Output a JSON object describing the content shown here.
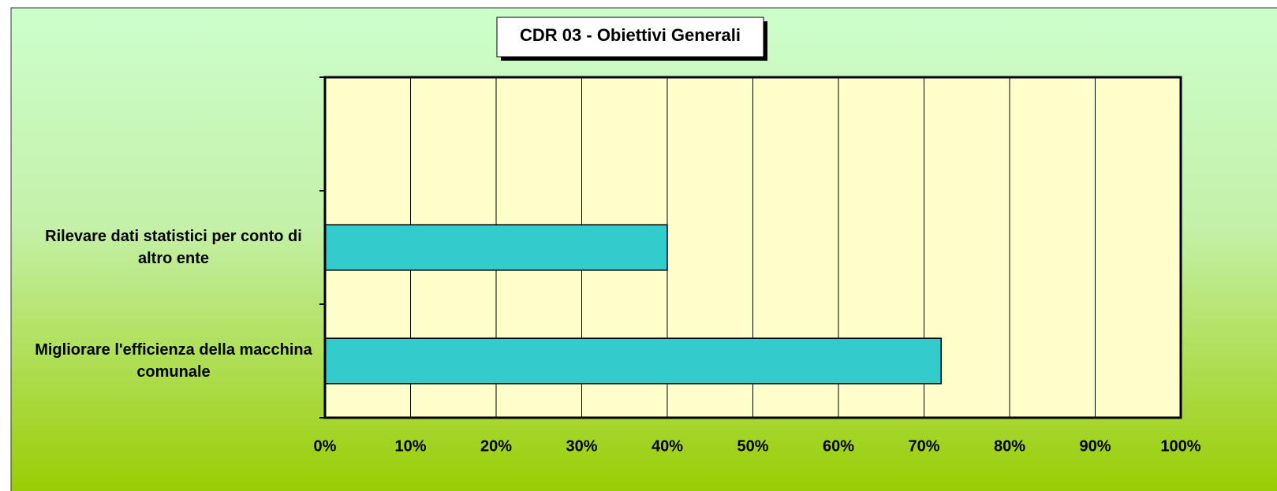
{
  "chart_data": {
    "type": "bar",
    "orientation": "horizontal",
    "title": "CDR 03 - Obiettivi Generali",
    "categories": [
      null,
      "Rilevare dati statistici per conto di altro ente",
      "Migliorare l'efficienza della macchina comunale"
    ],
    "values": [
      null,
      40,
      72
    ],
    "color": "#33cccc",
    "xlim": [
      0,
      100
    ],
    "xticks": [
      {
        "value": 0,
        "label": "0%"
      },
      {
        "value": 10,
        "label": "10%"
      },
      {
        "value": 20,
        "label": "20%"
      },
      {
        "value": 30,
        "label": "30%"
      },
      {
        "value": 40,
        "label": "40%"
      },
      {
        "value": 50,
        "label": "50%"
      },
      {
        "value": 60,
        "label": "60%"
      },
      {
        "value": 70,
        "label": "70%"
      },
      {
        "value": 80,
        "label": "80%"
      },
      {
        "value": 90,
        "label": "90%"
      },
      {
        "value": 100,
        "label": "100%"
      }
    ],
    "grid": true
  }
}
